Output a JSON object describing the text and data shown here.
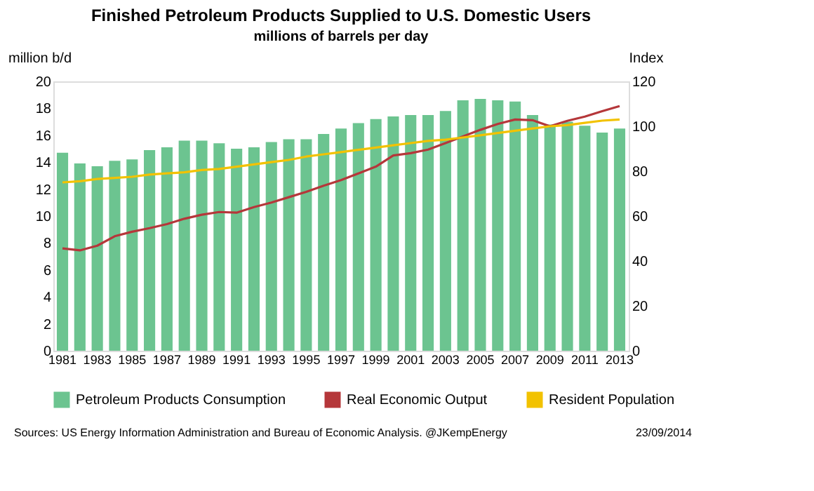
{
  "chart_data": {
    "type": "bar",
    "title": "Finished Petroleum Products Supplied to U.S. Domestic Users",
    "subtitle": "millions of barrels per day",
    "ylabel": "million b/d",
    "y2label": "Index",
    "categories": [
      "1981",
      null,
      "1983",
      null,
      "1985",
      null,
      "1987",
      null,
      "1989",
      null,
      "1991",
      null,
      "1993",
      null,
      "1995",
      null,
      "1997",
      null,
      "1999",
      null,
      "2001",
      null,
      "2003",
      null,
      "2005",
      null,
      "2007",
      null,
      "2009",
      null,
      "2011",
      null,
      "2013"
    ],
    "series": [
      {
        "name": "Petroleum Products Consumption",
        "color": "#6cc490",
        "values": [
          14.7,
          13.9,
          13.7,
          14.1,
          14.2,
          14.9,
          15.1,
          15.6,
          15.6,
          15.4,
          15.0,
          15.1,
          15.5,
          15.7,
          15.7,
          16.1,
          16.5,
          16.9,
          17.2,
          17.4,
          17.5,
          17.5,
          17.8,
          18.6,
          18.7,
          18.6,
          18.5,
          17.5,
          16.8,
          17.0,
          16.7,
          16.2,
          16.5
        ]
      },
      {
        "name": "Real Economic Output",
        "type": "line",
        "axis": "y2",
        "color": "#b5373a",
        "values": [
          45.6,
          44.7,
          46.8,
          51,
          53,
          54.6,
          56.4,
          58.8,
          60.6,
          61.8,
          61.5,
          64,
          66,
          68.4,
          70.8,
          73.5,
          76,
          79,
          82,
          87,
          88,
          89.6,
          92.5,
          95.5,
          98.4,
          101,
          103,
          102.7,
          100,
          102.4,
          104.3,
          106.7,
          109
        ]
      },
      {
        "name": "Resident Population",
        "type": "line",
        "axis": "y2",
        "color": "#f2c200",
        "values": [
          75,
          75.5,
          76.5,
          77,
          77.5,
          78.5,
          79,
          79.5,
          80.5,
          81,
          82,
          83,
          84,
          85,
          86.5,
          87.5,
          88.5,
          89.5,
          90.5,
          91.5,
          92.5,
          93.5,
          94,
          95,
          96,
          97,
          98,
          99,
          100,
          100.5,
          101.5,
          102.5,
          103
        ]
      }
    ],
    "ylim": [
      0,
      20
    ],
    "yticks": [
      0,
      2,
      4,
      6,
      8,
      10,
      12,
      14,
      16,
      18,
      20
    ],
    "y2lim": [
      0,
      120
    ],
    "y2ticks": [
      0,
      20,
      40,
      60,
      80,
      100,
      120
    ],
    "grid": false,
    "legend": "bottom",
    "line_style": "solid",
    "marker": "none",
    "annotations": [
      "Sources: US Energy Information Administration and Bureau of Economic Analysis. @JKempEnergy",
      "23/09/2014"
    ]
  }
}
